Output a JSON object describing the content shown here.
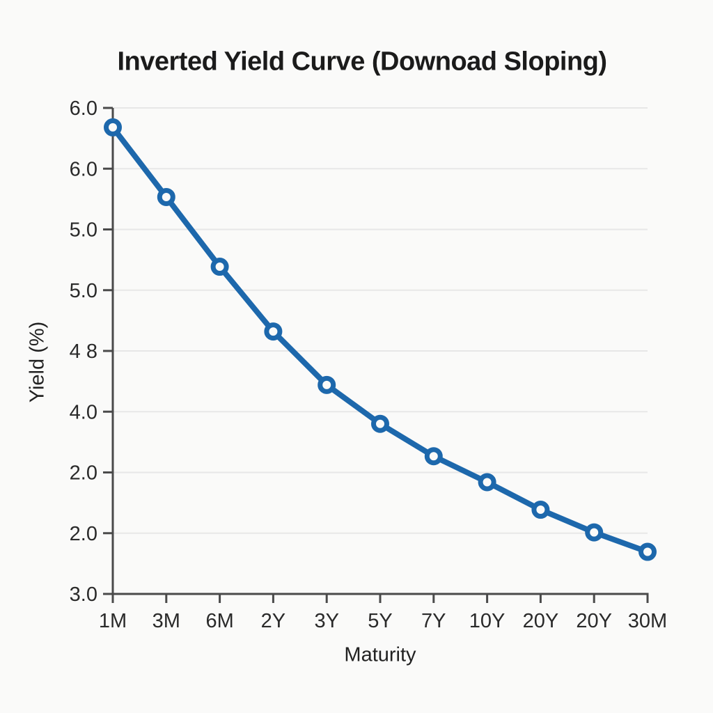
{
  "page": {
    "background": "#fafaf9"
  },
  "chart_data": {
    "type": "line",
    "title": "Inverted Yield Curve (Downoad Sloping)",
    "xlabel": "Maturity",
    "ylabel": "Yield (%)",
    "categories": [
      "1M",
      "3M",
      "6M",
      "2Y",
      "3Y",
      "5Y",
      "7Y",
      "10Y",
      "20Y",
      "20Y",
      "30M"
    ],
    "y_tick_labels": [
      "6.0",
      "6.0",
      "5.0",
      "5.0",
      "4 8",
      "4.0",
      "2.0",
      "2.0",
      "3.0"
    ],
    "series": [
      {
        "name": "Yield",
        "values": [
          5.88,
          5.45,
          5.02,
          4.62,
          4.29,
          4.05,
          3.85,
          3.69,
          3.52,
          3.38,
          3.26
        ]
      }
    ],
    "value_axis_range": [
      3.0,
      6.0
    ],
    "grid": "horizontal",
    "legend": "none",
    "marker": "open-circle",
    "colors": {
      "line": "#1d68ac",
      "marker_fill": "#fafaf9",
      "axis": "#4a4a4a",
      "grid": "#e7e7e7",
      "title_text": "#1b1b1b",
      "tick_text": "#2a2a2a"
    }
  }
}
